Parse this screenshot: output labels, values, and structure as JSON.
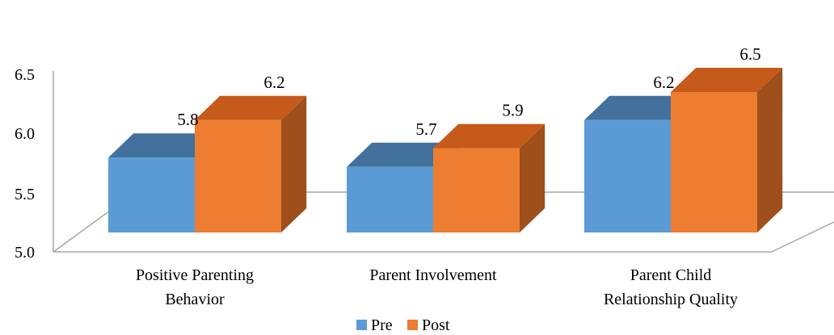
{
  "chart_data": {
    "type": "bar",
    "style": "3d-clustered-column",
    "categories": [
      [
        "Positive Parenting",
        "Behavior"
      ],
      [
        "Parent Involvement"
      ],
      [
        "Parent Child",
        "Relationship Quality"
      ]
    ],
    "series": [
      {
        "name": "Pre",
        "values": [
          5.8,
          5.7,
          6.2
        ],
        "color": "#5B9BD5",
        "top_color": "#41719C",
        "side_color": "#41719C"
      },
      {
        "name": "Post",
        "values": [
          6.2,
          5.9,
          6.5
        ],
        "color": "#ED7D31",
        "top_color": "#C55A1A",
        "side_color": "#9E4F1C"
      }
    ],
    "data_labels": [
      [
        "5.8",
        "5.7",
        "6.2"
      ],
      [
        "6.2",
        "5.9",
        "6.5"
      ]
    ],
    "y_ticks": [
      "5.0",
      "5.5",
      "6.0",
      "6.5"
    ],
    "ylim": [
      5.0,
      6.5
    ],
    "legend": {
      "position": "bottom"
    },
    "grid": false,
    "title": "",
    "xlabel": "",
    "ylabel": ""
  }
}
